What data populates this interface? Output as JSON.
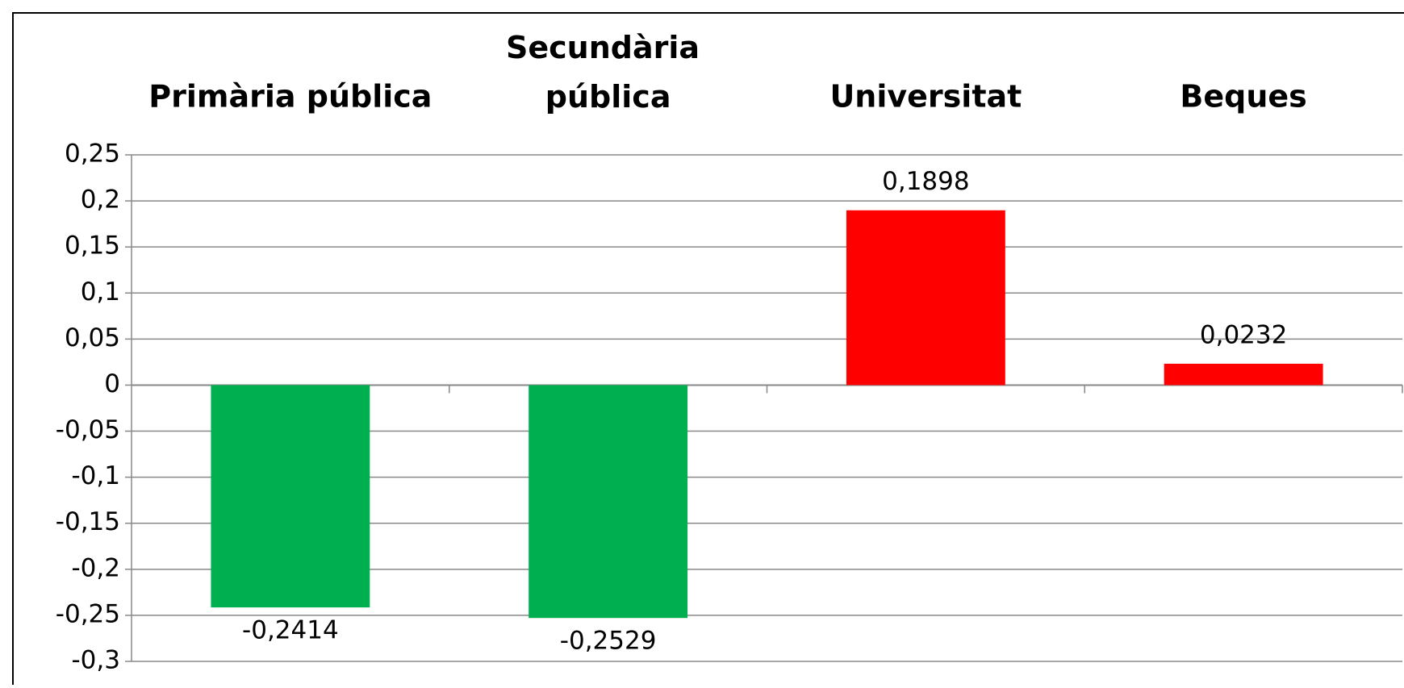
{
  "chart_data": {
    "type": "bar",
    "categories": [
      "Primària pública",
      "Secundària pública",
      "Universitat",
      "Beques"
    ],
    "values": [
      -0.2414,
      -0.2529,
      0.1898,
      0.0232
    ],
    "value_labels": [
      "-0,2414",
      "-0,2529",
      "0,1898",
      "0,0232"
    ],
    "colors": [
      "#00b050",
      "#00b050",
      "#ff0000",
      "#ff0000"
    ],
    "ylim": [
      -0.3,
      0.25
    ],
    "yticks": [
      {
        "value": -0.3,
        "label": "-0,3"
      },
      {
        "value": -0.25,
        "label": "-0,25"
      },
      {
        "value": -0.2,
        "label": "-0,2"
      },
      {
        "value": -0.15,
        "label": "-0,15"
      },
      {
        "value": -0.1,
        "label": "-0,1"
      },
      {
        "value": -0.05,
        "label": "-0,05"
      },
      0,
      {
        "value": 0.05,
        "label": "0,05"
      },
      {
        "value": 0.1,
        "label": "0,1"
      },
      {
        "value": 0.15,
        "label": "0,15"
      },
      {
        "value": 0.2,
        "label": "0,2"
      },
      {
        "value": 0.25,
        "label": "0,25"
      }
    ],
    "grid": true
  }
}
